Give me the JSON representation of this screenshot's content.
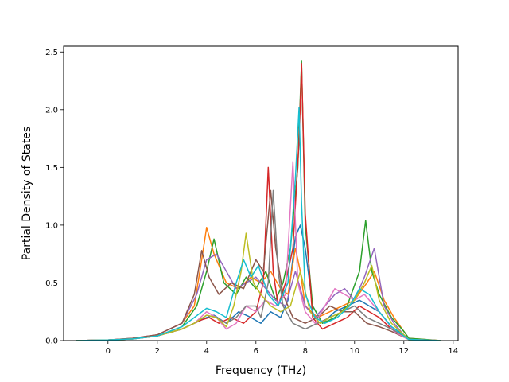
{
  "chart_data": {
    "type": "line",
    "title": "",
    "xlabel": "Frequency (THz)",
    "ylabel": "Partial Density of States",
    "xlim": [
      -1.8,
      14.2
    ],
    "ylim": [
      0.0,
      2.55
    ],
    "xticks": [
      0,
      2,
      4,
      6,
      8,
      10,
      12,
      14
    ],
    "xtick_labels": [
      "0",
      "2",
      "4",
      "6",
      "8",
      "10",
      "12",
      "14"
    ],
    "yticks": [
      0.0,
      0.5,
      1.0,
      1.5,
      2.0,
      2.5
    ],
    "ytick_labels": [
      "0.0",
      "0.5",
      "1.0",
      "1.5",
      "2.0",
      "2.5"
    ],
    "grid": false,
    "legend": "none",
    "series": [
      {
        "color": "#1f77b4",
        "x": [
          -1.3,
          0,
          1,
          2,
          3,
          3.5,
          4,
          4.3,
          4.8,
          5.3,
          5.8,
          6.2,
          6.6,
          7,
          7.3,
          7.6,
          7.8,
          8,
          8.3,
          8.7,
          9.2,
          9.7,
          10.2,
          10.6,
          11,
          11.5,
          12,
          12.2,
          13.5
        ],
        "y": [
          0,
          0.005,
          0.015,
          0.04,
          0.1,
          0.15,
          0.2,
          0.22,
          0.15,
          0.25,
          0.2,
          0.15,
          0.25,
          0.2,
          0.35,
          0.9,
          1.0,
          0.8,
          0.3,
          0.15,
          0.25,
          0.3,
          0.35,
          0.3,
          0.25,
          0.12,
          0.05,
          0.01,
          0
        ]
      },
      {
        "color": "#ff7f0e",
        "x": [
          -1.3,
          0,
          1,
          2,
          3,
          3.5,
          3.8,
          4,
          4.3,
          4.8,
          5.3,
          5.8,
          6.2,
          6.6,
          7,
          7.3,
          7.6,
          7.8,
          8,
          8.5,
          9,
          9.5,
          10,
          10.5,
          10.8,
          11.2,
          11.6,
          12,
          12.2,
          13.5
        ],
        "y": [
          0,
          0.005,
          0.02,
          0.05,
          0.15,
          0.3,
          0.7,
          0.98,
          0.75,
          0.5,
          0.45,
          0.55,
          0.5,
          0.6,
          0.45,
          0.4,
          0.8,
          0.6,
          0.3,
          0.2,
          0.25,
          0.3,
          0.35,
          0.5,
          0.6,
          0.35,
          0.2,
          0.08,
          0.02,
          0
        ]
      },
      {
        "color": "#2ca02c",
        "x": [
          -1.3,
          0,
          1,
          2,
          3,
          3.6,
          4,
          4.3,
          4.7,
          5.2,
          5.6,
          6,
          6.4,
          6.8,
          7.1,
          7.4,
          7.7,
          7.85,
          8,
          8.3,
          8.7,
          9.2,
          9.7,
          10.2,
          10.45,
          10.7,
          11,
          11.5,
          12,
          12.2,
          13.5
        ],
        "y": [
          0,
          0.005,
          0.015,
          0.04,
          0.12,
          0.3,
          0.6,
          0.88,
          0.5,
          0.4,
          0.55,
          0.45,
          0.6,
          0.35,
          0.5,
          0.8,
          1.5,
          2.42,
          1.0,
          0.3,
          0.15,
          0.2,
          0.3,
          0.6,
          1.04,
          0.6,
          0.4,
          0.2,
          0.08,
          0.02,
          0
        ]
      },
      {
        "color": "#d62728",
        "x": [
          -1.3,
          0,
          1,
          2,
          3,
          3.5,
          3.8,
          4.1,
          4.5,
          5,
          5.5,
          6,
          6.3,
          6.5,
          6.7,
          6.9,
          7.2,
          7.5,
          7.75,
          7.85,
          8,
          8.3,
          8.7,
          9.2,
          9.7,
          10.2,
          10.6,
          11,
          11.5,
          12,
          12.2,
          13.5
        ],
        "y": [
          0,
          0.005,
          0.015,
          0.04,
          0.1,
          0.15,
          0.18,
          0.2,
          0.15,
          0.2,
          0.15,
          0.25,
          0.5,
          1.5,
          0.6,
          0.3,
          0.5,
          0.8,
          1.73,
          2.4,
          1.1,
          0.2,
          0.1,
          0.15,
          0.2,
          0.3,
          0.25,
          0.2,
          0.1,
          0.04,
          0.01,
          0
        ]
      },
      {
        "color": "#9467bd",
        "x": [
          -1.3,
          0,
          1,
          2,
          3,
          3.6,
          4,
          4.4,
          4.8,
          5.2,
          5.6,
          6,
          6.4,
          6.8,
          7.2,
          7.6,
          8,
          8.4,
          8.8,
          9.2,
          9.6,
          10,
          10.4,
          10.8,
          11.2,
          11.6,
          12,
          12.2,
          13.5
        ],
        "y": [
          0,
          0.005,
          0.02,
          0.05,
          0.15,
          0.4,
          0.7,
          0.75,
          0.6,
          0.45,
          0.5,
          0.55,
          0.45,
          0.35,
          0.3,
          0.6,
          0.3,
          0.2,
          0.3,
          0.4,
          0.45,
          0.35,
          0.55,
          0.8,
          0.3,
          0.15,
          0.05,
          0.01,
          0
        ]
      },
      {
        "color": "#8c564b",
        "x": [
          -1.3,
          0,
          1,
          2,
          3,
          3.5,
          3.8,
          4.1,
          4.5,
          5,
          5.5,
          6,
          6.3,
          6.6,
          6.8,
          7.1,
          7.5,
          8,
          8.5,
          9,
          9.5,
          10,
          10.5,
          11,
          11.5,
          12,
          12.2,
          13.5
        ],
        "y": [
          0,
          0.005,
          0.02,
          0.05,
          0.15,
          0.4,
          0.78,
          0.55,
          0.4,
          0.5,
          0.45,
          0.7,
          0.6,
          1.3,
          0.8,
          0.4,
          0.2,
          0.15,
          0.2,
          0.3,
          0.25,
          0.25,
          0.15,
          0.12,
          0.08,
          0.03,
          0.01,
          0
        ]
      },
      {
        "color": "#e377c2",
        "x": [
          -1.3,
          0,
          1,
          2,
          3,
          3.5,
          4,
          4.4,
          4.8,
          5.2,
          5.6,
          6,
          6.4,
          6.8,
          7.2,
          7.5,
          7.7,
          8,
          8.4,
          8.8,
          9.2,
          9.6,
          10,
          10.4,
          10.8,
          11.2,
          11.6,
          12,
          12.2,
          13.5
        ],
        "y": [
          0,
          0.005,
          0.015,
          0.04,
          0.1,
          0.15,
          0.25,
          0.2,
          0.1,
          0.15,
          0.3,
          0.25,
          0.35,
          0.3,
          0.4,
          1.55,
          0.5,
          0.25,
          0.15,
          0.3,
          0.45,
          0.4,
          0.35,
          0.4,
          0.3,
          0.2,
          0.08,
          0.03,
          0.01,
          0
        ]
      },
      {
        "color": "#7f7f7f",
        "x": [
          -1.3,
          0,
          1,
          2,
          3,
          3.5,
          4,
          4.4,
          4.8,
          5.2,
          5.6,
          6,
          6.2,
          6.5,
          6.7,
          6.9,
          7.1,
          7.5,
          8,
          8.5,
          9,
          9.5,
          10,
          10.5,
          11,
          11.5,
          12,
          12.2,
          13.5
        ],
        "y": [
          0,
          0.005,
          0.015,
          0.04,
          0.1,
          0.15,
          0.22,
          0.2,
          0.15,
          0.2,
          0.3,
          0.3,
          0.2,
          0.5,
          1.3,
          0.6,
          0.3,
          0.15,
          0.1,
          0.15,
          0.2,
          0.25,
          0.3,
          0.2,
          0.15,
          0.1,
          0.04,
          0.01,
          0
        ]
      },
      {
        "color": "#bcbd22",
        "x": [
          -1.3,
          0,
          1,
          2,
          3,
          3.5,
          4,
          4.4,
          4.8,
          5.1,
          5.4,
          5.6,
          5.9,
          6.2,
          6.6,
          7,
          7.4,
          7.8,
          8.2,
          8.6,
          9,
          9.5,
          10,
          10.4,
          10.7,
          11,
          11.5,
          12,
          12.2,
          13.5
        ],
        "y": [
          0,
          0.005,
          0.015,
          0.04,
          0.1,
          0.15,
          0.22,
          0.2,
          0.12,
          0.3,
          0.6,
          0.93,
          0.5,
          0.4,
          0.3,
          0.25,
          0.3,
          0.6,
          0.25,
          0.15,
          0.2,
          0.25,
          0.35,
          0.5,
          0.65,
          0.35,
          0.15,
          0.05,
          0.01,
          0
        ]
      },
      {
        "color": "#17becf",
        "x": [
          -1.3,
          0,
          1,
          2,
          3,
          3.5,
          4,
          4.4,
          4.8,
          5.2,
          5.5,
          5.8,
          6.1,
          6.5,
          6.9,
          7.3,
          7.6,
          7.75,
          7.85,
          8,
          8.4,
          8.8,
          9.3,
          9.8,
          10.2,
          10.6,
          11,
          11.5,
          12,
          12.2,
          13.5
        ],
        "y": [
          0,
          0.005,
          0.015,
          0.04,
          0.12,
          0.2,
          0.28,
          0.25,
          0.2,
          0.5,
          0.7,
          0.55,
          0.65,
          0.4,
          0.3,
          0.5,
          1.4,
          2.02,
          1.2,
          0.4,
          0.2,
          0.15,
          0.2,
          0.3,
          0.45,
          0.4,
          0.25,
          0.12,
          0.04,
          0.01,
          0
        ]
      }
    ]
  }
}
